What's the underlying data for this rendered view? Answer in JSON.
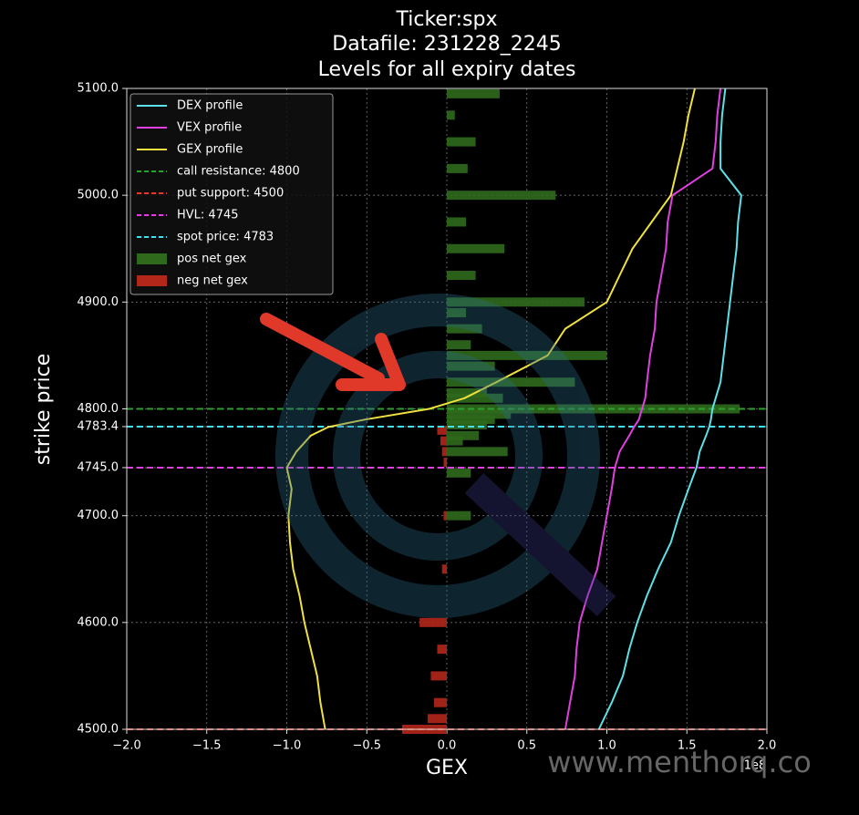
{
  "chart_data": {
    "type": "line",
    "title": [
      "Ticker:spx",
      "Datafile: 231228_2245",
      "Levels for all expiry dates"
    ],
    "x_label": "GEX",
    "y_label": "strike price",
    "x_offset_label": "1e8",
    "watermark": "www.menthorq.co",
    "xlim": [
      -2,
      2
    ],
    "ylim": [
      4500,
      5100
    ],
    "xticks": [
      {
        "value": -2,
        "label": "−2.0"
      },
      {
        "value": -1.5,
        "label": "−1.5"
      },
      {
        "value": -1,
        "label": "−1.0"
      },
      {
        "value": -0.5,
        "label": "−0.5"
      },
      {
        "value": 0,
        "label": "0.0"
      },
      0.5,
      {
        "value": 1,
        "label": "1.0"
      },
      1.5,
      {
        "value": 2,
        "label": "2.0"
      }
    ],
    "yticks": [
      {
        "value": 4500,
        "label": "4500.0"
      },
      {
        "value": 4600,
        "label": "4600.0"
      },
      {
        "value": 4700,
        "label": "4700.0"
      },
      {
        "value": 4745,
        "label": "4745.0"
      },
      4783.4,
      {
        "value": 4800,
        "label": "4800.0"
      },
      {
        "value": 4900,
        "label": "4900.0"
      },
      {
        "value": 5000,
        "label": "5000.0"
      },
      {
        "value": 5100,
        "label": "5100.0"
      }
    ],
    "grid": true,
    "legend": "upper left",
    "strikes": [
      4500,
      4525,
      4550,
      4575,
      4600,
      4625,
      4650,
      4675,
      4700,
      4725,
      4745,
      4760,
      4775,
      4783,
      4790,
      4800,
      4810,
      4825,
      4850,
      4875,
      4900,
      4925,
      4950,
      4975,
      5000,
      5025,
      5050,
      5075,
      5100
    ],
    "series": [
      {
        "name": "DEX profile",
        "color": "#5ee0e8",
        "values": [
          0.95,
          1.03,
          1.1,
          1.14,
          1.19,
          1.25,
          1.32,
          1.4,
          1.45,
          1.51,
          1.56,
          1.58,
          1.62,
          1.64,
          1.65,
          1.66,
          1.68,
          1.71,
          1.73,
          1.75,
          1.77,
          1.79,
          1.81,
          1.82,
          1.84,
          1.71,
          1.71,
          1.72,
          1.74
        ]
      },
      {
        "name": "VEX profile",
        "color": "#e040e0",
        "values": [
          0.74,
          0.77,
          0.8,
          0.81,
          0.83,
          0.88,
          0.94,
          0.97,
          1.0,
          1.03,
          1.05,
          1.08,
          1.14,
          1.17,
          1.2,
          1.22,
          1.24,
          1.25,
          1.27,
          1.3,
          1.31,
          1.34,
          1.37,
          1.38,
          1.41,
          1.66,
          1.68,
          1.69,
          1.71
        ]
      },
      {
        "name": "GEX profile",
        "color": "#f0e040",
        "values": [
          -0.76,
          -0.79,
          -0.81,
          -0.85,
          -0.89,
          -0.92,
          -0.96,
          -0.98,
          -0.99,
          -0.97,
          -1.0,
          -0.94,
          -0.85,
          -0.74,
          -0.51,
          -0.11,
          0.11,
          0.31,
          0.63,
          0.74,
          1.0,
          1.08,
          1.16,
          1.28,
          1.4,
          1.44,
          1.48,
          1.51,
          1.55
        ]
      }
    ],
    "levels": [
      {
        "name": "call resistance: 4800",
        "color": "#2ca02c",
        "value": 4800
      },
      {
        "name": "put support: 4500",
        "color": "#e03a2a",
        "value": 4500
      },
      {
        "name": "HVL: 4745",
        "color": "#e040e0",
        "value": 4745
      },
      {
        "name": "spot price: 4783",
        "color": "#40e0f0",
        "value": 4783.4
      }
    ],
    "bars": [
      {
        "name": "pos net gex",
        "color": "#2f6a1c",
        "strikes": [
          5095,
          5075,
          5050,
          5025,
          5000,
          4975,
          4950,
          4925,
          4900,
          4890,
          4875,
          4860,
          4850,
          4840,
          4825,
          4815,
          4810,
          4800,
          4795,
          4790,
          4785,
          4775,
          4770,
          4760,
          4740,
          4700
        ],
        "values": [
          0.33,
          0.05,
          0.18,
          0.13,
          0.68,
          0.12,
          0.36,
          0.18,
          0.86,
          0.12,
          0.22,
          0.15,
          1.0,
          0.3,
          0.8,
          0.25,
          0.35,
          1.83,
          0.4,
          0.3,
          0.25,
          0.2,
          0.1,
          0.38,
          0.15,
          0.15
        ]
      },
      {
        "name": "neg net gex",
        "color": "#b3261a",
        "strikes": [
          4780,
          4770,
          4760,
          4750,
          4700,
          4650,
          4600,
          4575,
          4550,
          4525,
          4510,
          4500
        ],
        "values": [
          -0.06,
          -0.04,
          -0.03,
          -0.02,
          -0.02,
          -0.03,
          -0.17,
          -0.06,
          -0.1,
          -0.08,
          -0.12,
          -0.28
        ]
      }
    ]
  }
}
